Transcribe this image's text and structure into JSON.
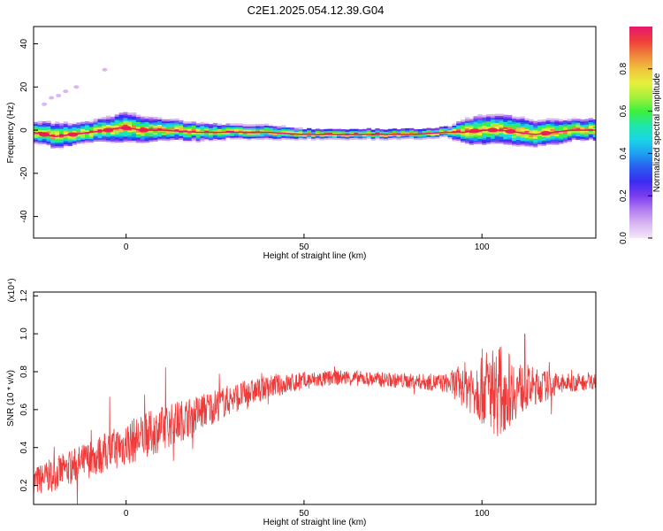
{
  "title": "C2E1.2025.054.12.39.G04",
  "colors": {
    "snr_line": "#f03a3a",
    "colormap": [
      "#f3e6f8",
      "#d9b8f2",
      "#b27df0",
      "#7a3cf0",
      "#3a2cf0",
      "#2a5cf0",
      "#1ea0f0",
      "#1ad6e6",
      "#20e6a8",
      "#3cf03c",
      "#a6f03c",
      "#e6f03c",
      "#f0c23c",
      "#f0823c",
      "#f03c3c",
      "#e6186e"
    ]
  },
  "chart_data": [
    {
      "type": "heatmap",
      "xlabel": "Height of straight line (km)",
      "ylabel": "Frequency (Hz)",
      "xlim": [
        -26,
        132
      ],
      "ylim": [
        -50,
        48
      ],
      "x_ticks": [
        "0",
        "50",
        "100"
      ],
      "y_ticks": [
        "-40",
        "-20",
        "0",
        "20",
        "40"
      ],
      "colorbar": {
        "label": "Normalized spectral amplitude",
        "range": [
          0,
          1
        ],
        "ticks": [
          "0.0",
          "0.2",
          "0.4",
          "0.6",
          "0.8"
        ]
      },
      "ridge": {
        "description_x": [
          -26,
          -20,
          -15,
          -10,
          -5,
          -2,
          0,
          5,
          10,
          20,
          30,
          40,
          50,
          60,
          70,
          80,
          90,
          92,
          95,
          100,
          105,
          110,
          115,
          120,
          125,
          132
        ],
        "center_freq": [
          -1,
          -3,
          -2,
          -1,
          0,
          1,
          1,
          0,
          0,
          -1,
          -1,
          -1,
          -2,
          -2,
          -2,
          -2,
          -1,
          -1,
          -1,
          0,
          0,
          -1,
          -2,
          -1,
          0,
          0
        ],
        "spread": [
          5,
          6,
          5,
          5,
          6,
          7,
          7,
          6,
          5,
          4,
          3,
          3,
          2,
          2,
          2,
          2,
          2,
          4,
          6,
          7,
          7,
          7,
          6,
          6,
          5,
          5
        ]
      },
      "scatter_points": [
        {
          "x": -23,
          "y": 12
        },
        {
          "x": -21,
          "y": 15
        },
        {
          "x": -19,
          "y": 16
        },
        {
          "x": -17,
          "y": 18
        },
        {
          "x": -14,
          "y": 20
        },
        {
          "x": -6,
          "y": 28
        }
      ]
    },
    {
      "type": "line",
      "xlabel": "Height of straight line (km)",
      "ylabel": "SNR (10 * v/v)",
      "multiplier": "(x10⁴)",
      "xlim": [
        -26,
        132
      ],
      "ylim": [
        0.1,
        1.22
      ],
      "x_ticks": [
        "0",
        "50",
        "100"
      ],
      "y_ticks": [
        "0.2",
        "0.4",
        "0.6",
        "0.8",
        "1.0",
        "1.2"
      ],
      "trend": {
        "x": [
          -26,
          -20,
          -10,
          0,
          10,
          20,
          30,
          40,
          50,
          60,
          70,
          80,
          90,
          95,
          100,
          105,
          110,
          115,
          120,
          125,
          132
        ],
        "y": [
          0.22,
          0.26,
          0.34,
          0.42,
          0.5,
          0.58,
          0.66,
          0.72,
          0.75,
          0.77,
          0.76,
          0.75,
          0.74,
          0.73,
          0.72,
          0.7,
          0.71,
          0.72,
          0.73,
          0.74,
          0.75
        ],
        "noise": [
          0.08,
          0.09,
          0.1,
          0.12,
          0.12,
          0.1,
          0.08,
          0.06,
          0.05,
          0.04,
          0.04,
          0.04,
          0.05,
          0.12,
          0.2,
          0.25,
          0.15,
          0.1,
          0.07,
          0.05,
          0.04
        ]
      }
    }
  ]
}
